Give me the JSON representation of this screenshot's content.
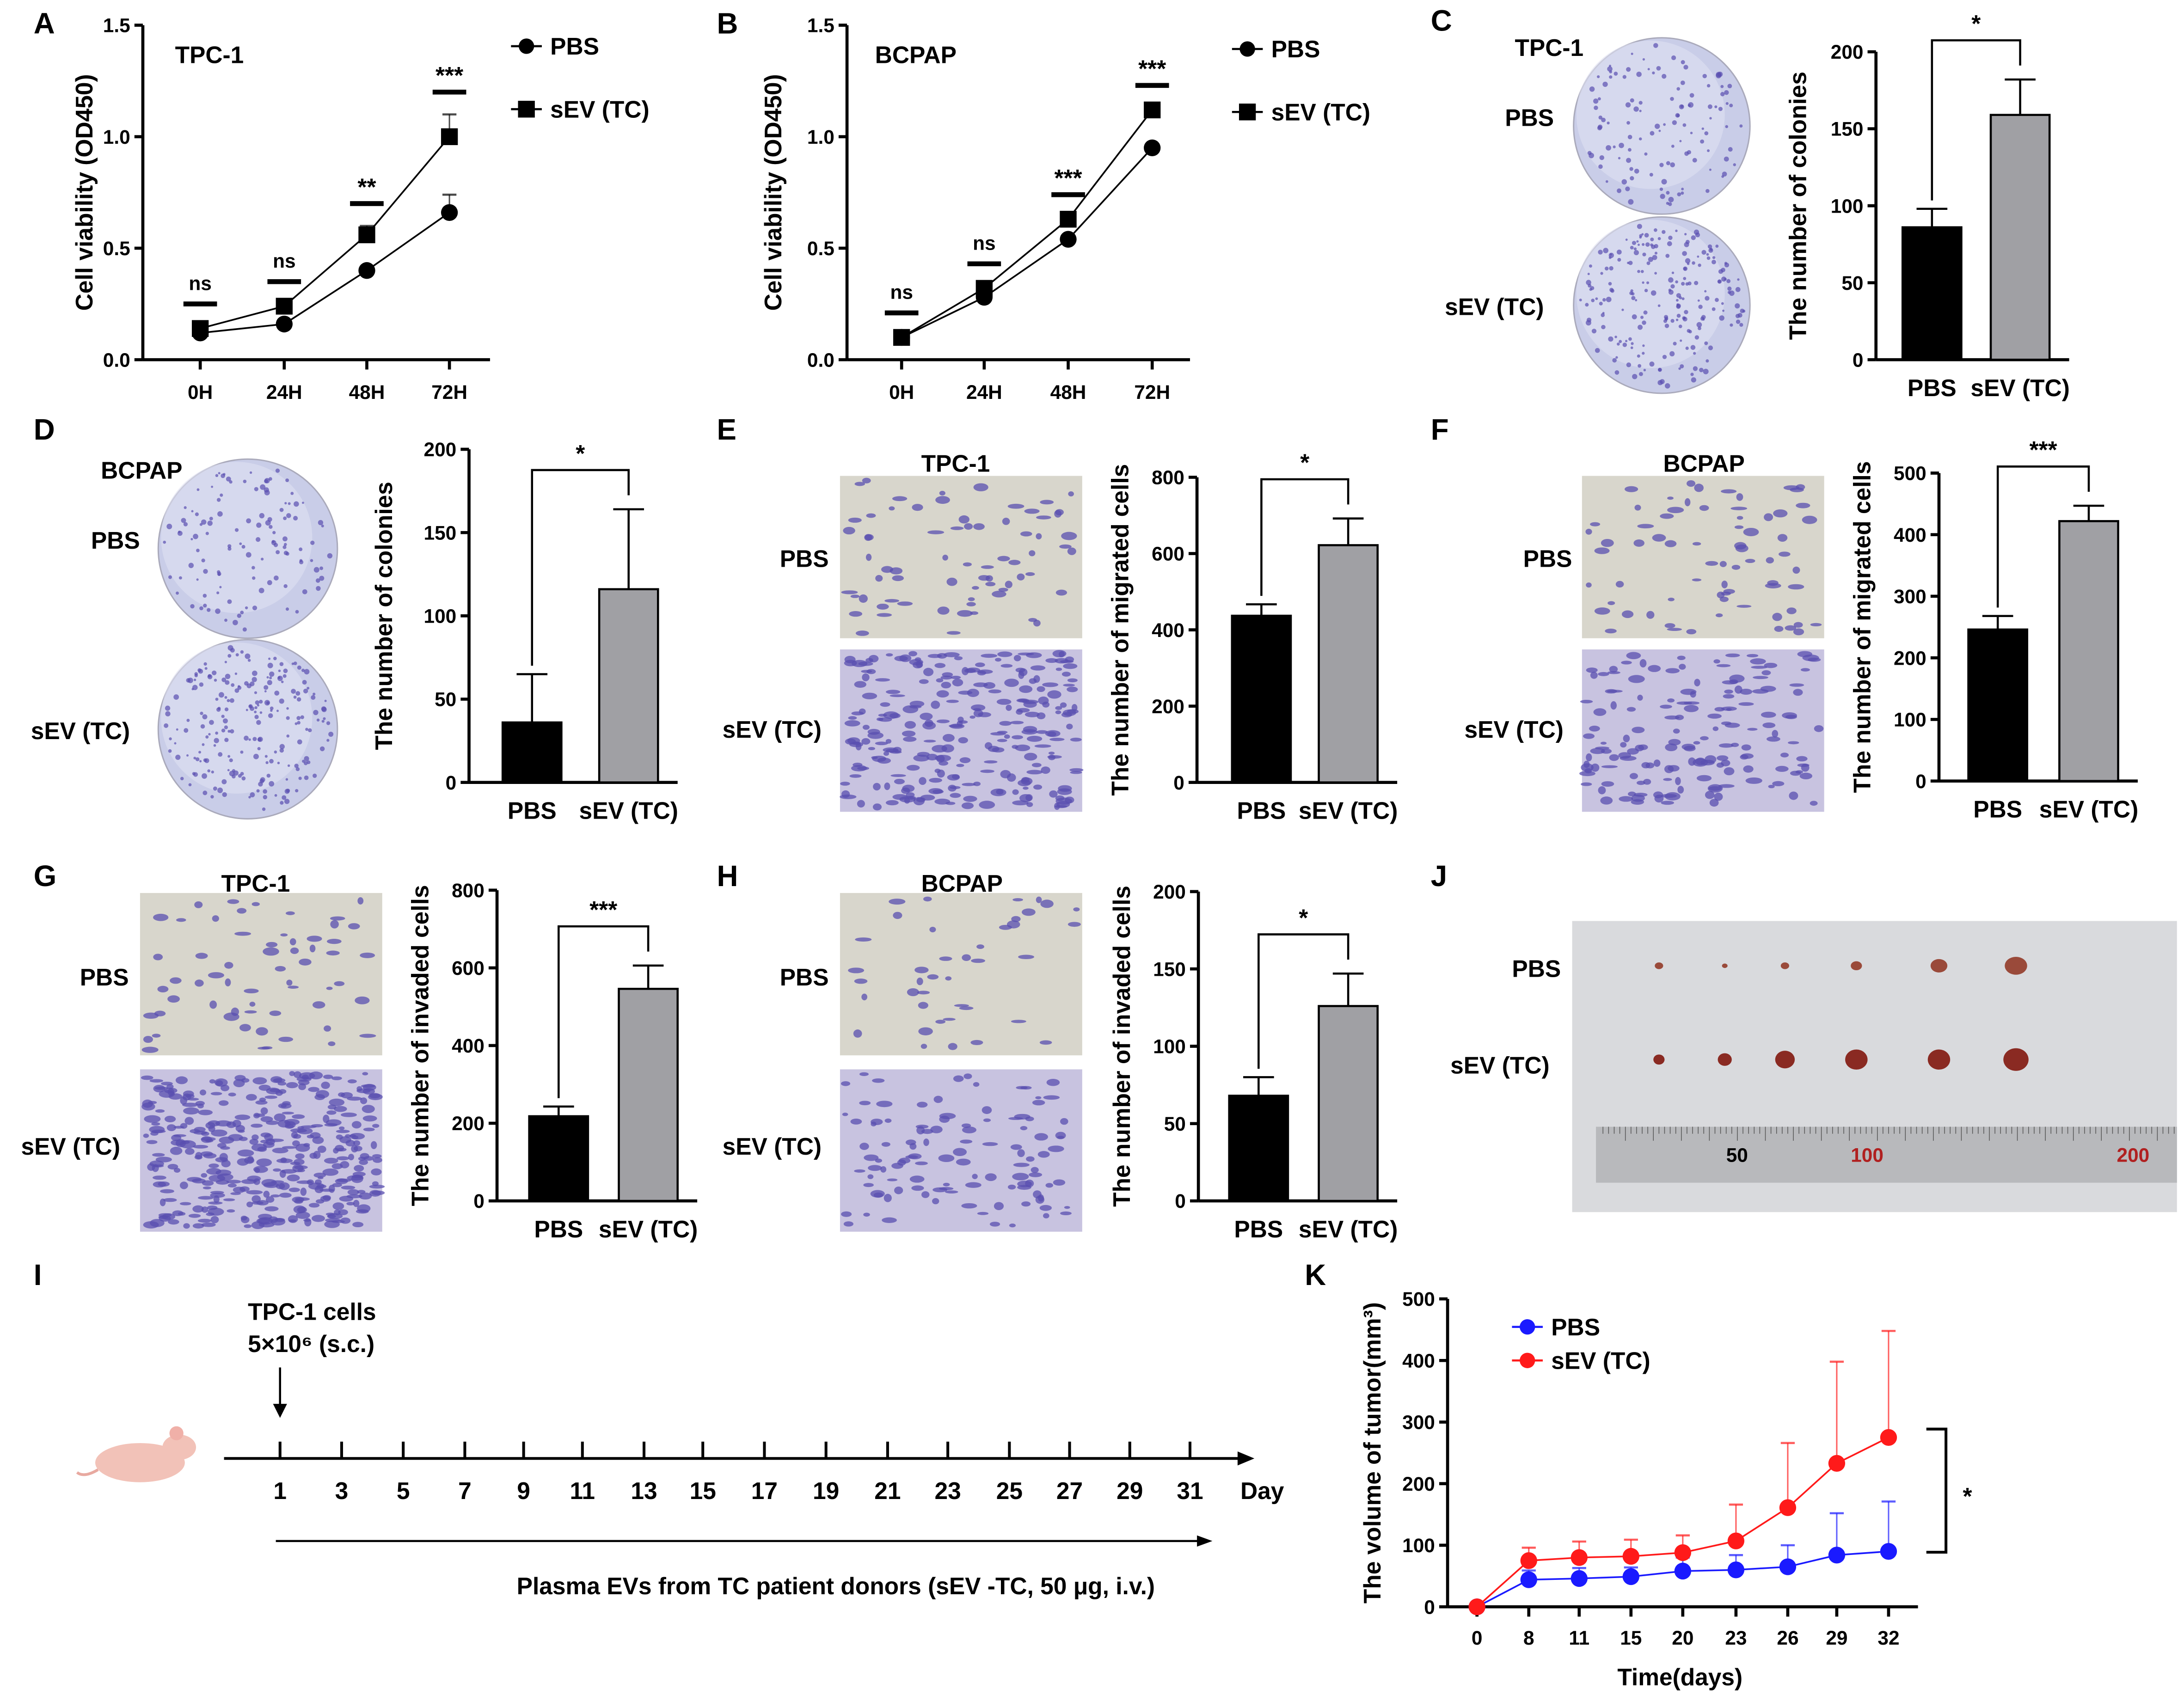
{
  "chart_data": [
    {
      "id": "A",
      "type": "line",
      "letter": "A",
      "inset_title": "TPC-1",
      "ylabel": "Cell viability (OD450)",
      "ylim": [
        0,
        1.5
      ],
      "yticks": [
        "0.0",
        "0.5",
        "1.0",
        "1.5"
      ],
      "categories": [
        "0H",
        "24H",
        "48H",
        "72H"
      ],
      "series": [
        {
          "name": "PBS",
          "marker": "circle",
          "values": [
            0.12,
            0.16,
            0.4,
            0.66
          ],
          "err": [
            0.01,
            0.01,
            0.01,
            0.08
          ]
        },
        {
          "name": "sEV (TC)",
          "marker": "square",
          "values": [
            0.14,
            0.24,
            0.56,
            1.0
          ],
          "err": [
            0.01,
            0.01,
            0.04,
            0.1
          ]
        }
      ],
      "significance": [
        "ns",
        "ns",
        "**",
        "***"
      ]
    },
    {
      "id": "B",
      "type": "line",
      "letter": "B",
      "inset_title": "BCPAP",
      "ylabel": "Cell viability (OD450)",
      "ylim": [
        0,
        1.5
      ],
      "yticks": [
        "0.0",
        "0.5",
        "1.0",
        "1.5"
      ],
      "categories": [
        "0H",
        "24H",
        "48H",
        "72H"
      ],
      "series": [
        {
          "name": "PBS",
          "marker": "circle",
          "values": [
            0.1,
            0.28,
            0.54,
            0.95
          ],
          "err": [
            0.01,
            0.01,
            0.01,
            0.01
          ]
        },
        {
          "name": "sEV (TC)",
          "marker": "square",
          "values": [
            0.1,
            0.32,
            0.63,
            1.12
          ],
          "err": [
            0.01,
            0.01,
            0.01,
            0.01
          ]
        }
      ],
      "significance": [
        "ns",
        "ns",
        "***",
        "***"
      ]
    },
    {
      "id": "C",
      "type": "bar",
      "letter": "C",
      "image_title": "TPC-1",
      "row_labels": [
        "PBS",
        "sEV (TC)"
      ],
      "ylabel": "The number of colonies",
      "ylim": [
        0,
        200
      ],
      "yticks": [
        "0",
        "50",
        "100",
        "150",
        "200"
      ],
      "categories": [
        "PBS",
        "sEV (TC)"
      ],
      "values": [
        86,
        159
      ],
      "err": [
        12,
        23
      ],
      "significance": "*"
    },
    {
      "id": "D",
      "type": "bar",
      "letter": "D",
      "image_title": "BCPAP",
      "row_labels": [
        "PBS",
        "sEV (TC)"
      ],
      "ylabel": "The number of colonies",
      "ylim": [
        0,
        200
      ],
      "yticks": [
        "0",
        "50",
        "100",
        "150",
        "200"
      ],
      "categories": [
        "PBS",
        "sEV (TC)"
      ],
      "values": [
        36,
        116
      ],
      "err": [
        29,
        48
      ],
      "significance": "*"
    },
    {
      "id": "E",
      "type": "bar",
      "letter": "E",
      "image_title": "TPC-1",
      "row_labels": [
        "PBS",
        "sEV (TC)"
      ],
      "ylabel": "The number of migrated cells",
      "ylim": [
        0,
        800
      ],
      "yticks": [
        "0",
        "200",
        "400",
        "600",
        "800"
      ],
      "categories": [
        "PBS",
        "sEV (TC)"
      ],
      "values": [
        437,
        622
      ],
      "err": [
        30,
        70
      ],
      "significance": "*"
    },
    {
      "id": "F",
      "type": "bar",
      "letter": "F",
      "image_title": "BCPAP",
      "row_labels": [
        "PBS",
        "sEV (TC)"
      ],
      "ylabel": "The number of migrated cells",
      "ylim": [
        0,
        500
      ],
      "yticks": [
        "0",
        "100",
        "200",
        "300",
        "400",
        "500"
      ],
      "categories": [
        "PBS",
        "sEV (TC)"
      ],
      "values": [
        246,
        422
      ],
      "err": [
        22,
        25
      ],
      "significance": "***"
    },
    {
      "id": "G",
      "type": "bar",
      "letter": "G",
      "image_title": "TPC-1",
      "row_labels": [
        "PBS",
        "sEV (TC)"
      ],
      "ylabel": "The number of invaded cells",
      "ylim": [
        0,
        800
      ],
      "yticks": [
        "0",
        "200",
        "400",
        "600",
        "800"
      ],
      "categories": [
        "PBS",
        "sEV (TC)"
      ],
      "values": [
        218,
        546
      ],
      "err": [
        25,
        60
      ],
      "significance": "***"
    },
    {
      "id": "H",
      "type": "bar",
      "letter": "H",
      "image_title": "BCPAP",
      "row_labels": [
        "PBS",
        "sEV (TC)"
      ],
      "ylabel": "The number of invaded cells",
      "ylim": [
        0,
        200
      ],
      "yticks": [
        "0",
        "50",
        "100",
        "150",
        "200"
      ],
      "categories": [
        "PBS",
        "sEV (TC)"
      ],
      "values": [
        68,
        126
      ],
      "err": [
        12,
        21
      ],
      "significance": "*"
    },
    {
      "id": "K",
      "type": "line",
      "letter": "K",
      "xlabel": "Time(days)",
      "ylabel": "The volume of tumor(mm³)",
      "ylim": [
        0,
        500
      ],
      "yticks": [
        "0",
        "100",
        "200",
        "300",
        "400",
        "500"
      ],
      "categories": [
        "0",
        "8",
        "11",
        "15",
        "20",
        "23",
        "26",
        "29",
        "32"
      ],
      "series": [
        {
          "name": "PBS",
          "color": "#1a1aff",
          "marker": "circle",
          "values": [
            0,
            44,
            46,
            49,
            58,
            60,
            65,
            84,
            90
          ],
          "err": [
            0,
            15,
            17,
            15,
            22,
            24,
            35,
            68,
            81
          ]
        },
        {
          "name": "sEV (TC)",
          "color": "#ff1a1a",
          "marker": "circle",
          "values": [
            0,
            75,
            80,
            82,
            88,
            107,
            161,
            233,
            275
          ],
          "err": [
            0,
            21,
            26,
            27,
            28,
            59,
            105,
            165,
            173
          ]
        }
      ],
      "significance": "*"
    }
  ],
  "panel_J": {
    "letter": "J",
    "row_labels": [
      "PBS",
      "sEV (TC)"
    ],
    "ruler_marks": [
      "50",
      "100",
      "200"
    ]
  },
  "panel_I": {
    "letter": "I",
    "injection_line1": "TPC-1 cells",
    "injection_line2": "5×10⁶ (s.c.)",
    "days": [
      "1",
      "3",
      "5",
      "7",
      "9",
      "11",
      "13",
      "15",
      "17",
      "19",
      "21",
      "23",
      "25",
      "27",
      "29",
      "31"
    ],
    "day_label": "Day",
    "treatment": "Plasma EVs from TC patient donors (sEV -TC, 50 μg, i.v.)"
  },
  "colors": {
    "pbs_bar": "#000000",
    "sev_bar": "#a0a0a4",
    "stain": "#5a4fb0",
    "plate": "#c9cde8"
  }
}
